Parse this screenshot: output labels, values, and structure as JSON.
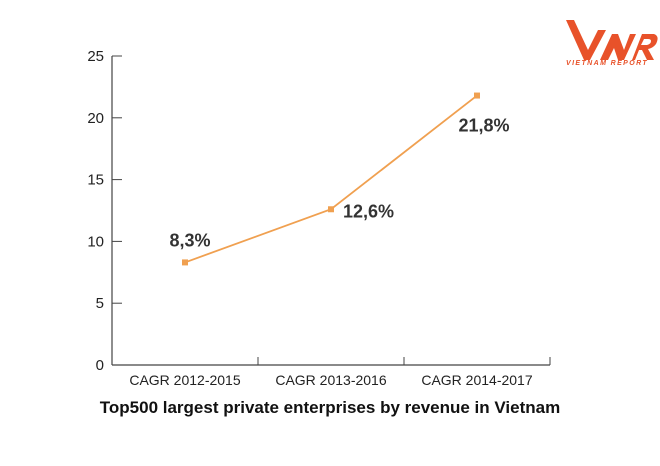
{
  "chart_data": {
    "type": "line",
    "title": "Top500 largest private enterprises by revenue in Vietnam",
    "categories": [
      "CAGR 2012-2015",
      "CAGR 2013-2016",
      "CAGR 2014-2017"
    ],
    "values": [
      8.3,
      12.6,
      21.8
    ],
    "data_labels": [
      "8,3%",
      "12,6%",
      "21,8%"
    ],
    "ylim": [
      0,
      25
    ],
    "yticks": [
      0,
      5,
      10,
      15,
      20,
      25
    ],
    "grid": false,
    "line_color": "#f0a050",
    "marker": "square"
  },
  "logo": {
    "text": "VNR",
    "subtitle": "VIETNAM REPORT",
    "color": "#e8522a"
  }
}
